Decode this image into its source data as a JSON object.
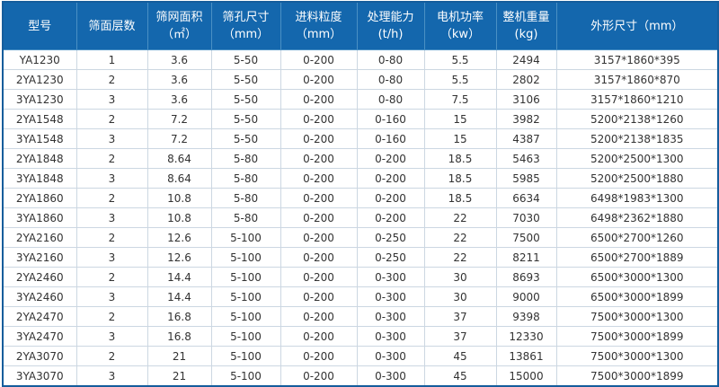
{
  "colors": {
    "header_bg": "#1467ad",
    "header_text": "#ffffff",
    "outer_border": "#155d9c",
    "grid_line": "#ccd7e2",
    "body_text": "#333333",
    "row_bg": "#ffffff"
  },
  "table": {
    "headers": [
      {
        "line1": "型号",
        "line2": ""
      },
      {
        "line1": "筛面层数",
        "line2": ""
      },
      {
        "line1": "筛网面积",
        "line2": "（㎡）"
      },
      {
        "line1": "筛孔尺寸",
        "line2": "（mm）"
      },
      {
        "line1": "进料粒度",
        "line2": "（mm）"
      },
      {
        "line1": "处理能力",
        "line2": "(t/h)"
      },
      {
        "line1": "电机功率",
        "line2": "（kw）"
      },
      {
        "line1": "整机重量",
        "line2": "(kg)"
      },
      {
        "line1": "外形尺寸（mm）",
        "line2": ""
      }
    ],
    "rows": [
      [
        "YA1230",
        "1",
        "3.6",
        "5-50",
        "0-200",
        "0-80",
        "5.5",
        "2494",
        "3157*1860*395"
      ],
      [
        "2YA1230",
        "2",
        "3.6",
        "5-50",
        "0-200",
        "0-80",
        "5.5",
        "2802",
        "3157*1860*870"
      ],
      [
        "3YA1230",
        "3",
        "3.6",
        "5-50",
        "0-200",
        "0-80",
        "7.5",
        "3106",
        "3157*1860*1210"
      ],
      [
        "2YA1548",
        "2",
        "7.2",
        "5-50",
        "0-200",
        "0-160",
        "15",
        "3982",
        "5200*2138*1260"
      ],
      [
        "3YA1548",
        "3",
        "7.2",
        "5-50",
        "0-200",
        "0-160",
        "15",
        "4387",
        "5200*2138*1835"
      ],
      [
        "2YA1848",
        "2",
        "8.64",
        "5-80",
        "0-200",
        "0-200",
        "18.5",
        "5463",
        "5200*2500*1300"
      ],
      [
        "3YA1848",
        "3",
        "8.64",
        "5-80",
        "0-200",
        "0-200",
        "18.5",
        "5985",
        "5200*2500*1880"
      ],
      [
        "2YA1860",
        "2",
        "10.8",
        "5-80",
        "0-200",
        "0-200",
        "18.5",
        "6634",
        "6498*1983*1300"
      ],
      [
        "3YA1860",
        "3",
        "10.8",
        "5-80",
        "0-200",
        "0-200",
        "22",
        "7030",
        "6498*2362*1880"
      ],
      [
        "2YA2160",
        "2",
        "12.6",
        "5-100",
        "0-200",
        "0-250",
        "22",
        "7500",
        "6500*2700*1260"
      ],
      [
        "3YA2160",
        "3",
        "12.6",
        "5-100",
        "0-200",
        "0-250",
        "22",
        "8211",
        "6500*2700*1889"
      ],
      [
        "2YA2460",
        "2",
        "14.4",
        "5-100",
        "0-200",
        "0-300",
        "30",
        "8693",
        "6500*3000*1300"
      ],
      [
        "3YA2460",
        "3",
        "14.4",
        "5-100",
        "0-200",
        "0-300",
        "30",
        "9000",
        "6500*3000*1899"
      ],
      [
        "2YA2470",
        "2",
        "16.8",
        "5-100",
        "0-200",
        "0-300",
        "37",
        "9398",
        "7500*3000*1300"
      ],
      [
        "3YA2470",
        "3",
        "16.8",
        "5-100",
        "0-200",
        "0-300",
        "37",
        "12330",
        "7500*3000*1899"
      ],
      [
        "2YA3070",
        "2",
        "21",
        "5-100",
        "0-200",
        "0-300",
        "45",
        "13861",
        "7500*3000*1300"
      ],
      [
        "3YA3070",
        "3",
        "21",
        "5-100",
        "0-200",
        "0-300",
        "45",
        "15000",
        "7500*3000*1899"
      ]
    ]
  },
  "chart_data": {
    "type": "table",
    "columns": [
      "型号",
      "筛面层数",
      "筛网面积(㎡)",
      "筛孔尺寸(mm)",
      "进料粒度(mm)",
      "处理能力(t/h)",
      "电机功率(kw)",
      "整机重量(kg)",
      "外形尺寸(mm)"
    ],
    "rows": [
      [
        "YA1230",
        1,
        3.6,
        "5-50",
        "0-200",
        "0-80",
        5.5,
        2494,
        "3157*1860*395"
      ],
      [
        "2YA1230",
        2,
        3.6,
        "5-50",
        "0-200",
        "0-80",
        5.5,
        2802,
        "3157*1860*870"
      ],
      [
        "3YA1230",
        3,
        3.6,
        "5-50",
        "0-200",
        "0-80",
        7.5,
        3106,
        "3157*1860*1210"
      ],
      [
        "2YA1548",
        2,
        7.2,
        "5-50",
        "0-200",
        "0-160",
        15,
        3982,
        "5200*2138*1260"
      ],
      [
        "3YA1548",
        3,
        7.2,
        "5-50",
        "0-200",
        "0-160",
        15,
        4387,
        "5200*2138*1835"
      ],
      [
        "2YA1848",
        2,
        8.64,
        "5-80",
        "0-200",
        "0-200",
        18.5,
        5463,
        "5200*2500*1300"
      ],
      [
        "3YA1848",
        3,
        8.64,
        "5-80",
        "0-200",
        "0-200",
        18.5,
        5985,
        "5200*2500*1880"
      ],
      [
        "2YA1860",
        2,
        10.8,
        "5-80",
        "0-200",
        "0-200",
        18.5,
        6634,
        "6498*1983*1300"
      ],
      [
        "3YA1860",
        3,
        10.8,
        "5-80",
        "0-200",
        "0-200",
        22,
        7030,
        "6498*2362*1880"
      ],
      [
        "2YA2160",
        2,
        12.6,
        "5-100",
        "0-200",
        "0-250",
        22,
        7500,
        "6500*2700*1260"
      ],
      [
        "3YA2160",
        3,
        12.6,
        "5-100",
        "0-200",
        "0-250",
        22,
        8211,
        "6500*2700*1889"
      ],
      [
        "2YA2460",
        2,
        14.4,
        "5-100",
        "0-200",
        "0-300",
        30,
        8693,
        "6500*3000*1300"
      ],
      [
        "3YA2460",
        3,
        14.4,
        "5-100",
        "0-200",
        "0-300",
        30,
        9000,
        "6500*3000*1899"
      ],
      [
        "2YA2470",
        2,
        16.8,
        "5-100",
        "0-200",
        "0-300",
        37,
        9398,
        "7500*3000*1300"
      ],
      [
        "3YA2470",
        3,
        16.8,
        "5-100",
        "0-200",
        "0-300",
        37,
        12330,
        "7500*3000*1899"
      ],
      [
        "2YA3070",
        2,
        21,
        "5-100",
        "0-200",
        "0-300",
        45,
        13861,
        "7500*3000*1300"
      ],
      [
        "3YA3070",
        3,
        21,
        "5-100",
        "0-200",
        "0-300",
        45,
        15000,
        "7500*3000*1899"
      ]
    ]
  }
}
